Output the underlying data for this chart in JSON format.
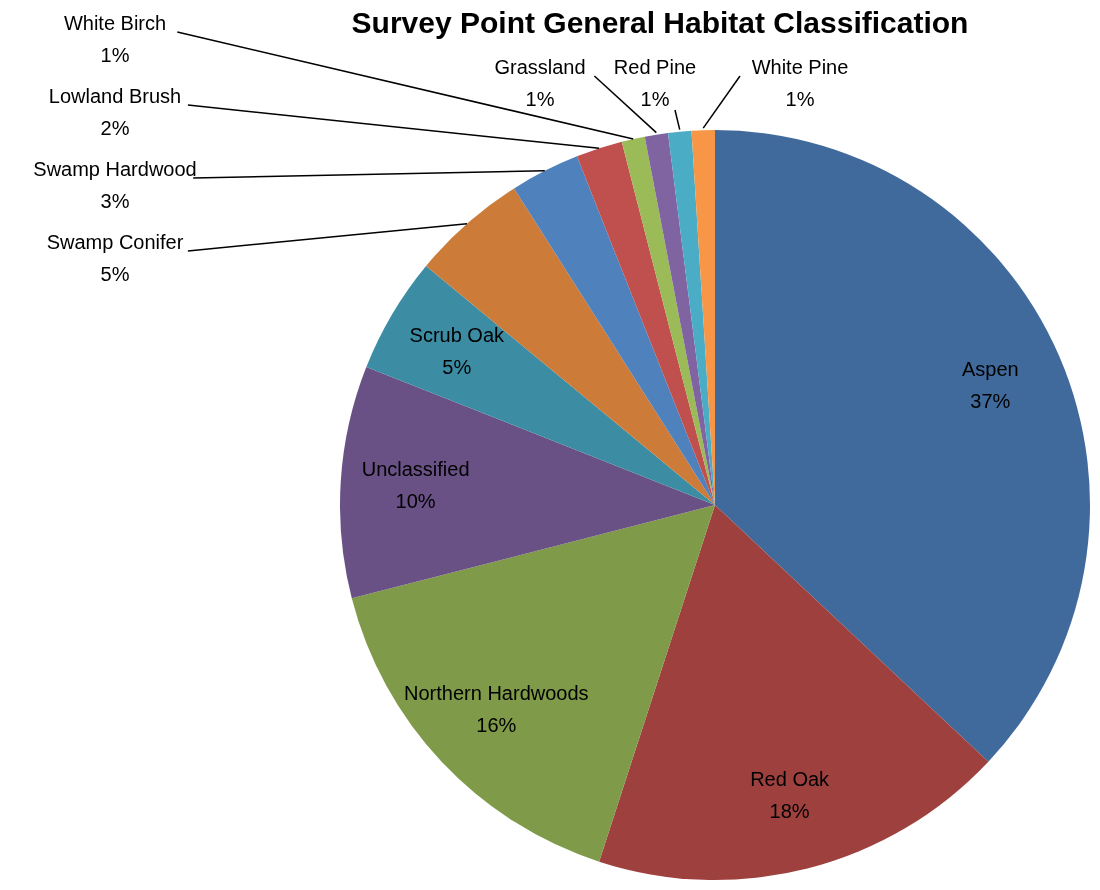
{
  "chart_data": {
    "type": "pie",
    "title": "Survey Point General Habitat Classification",
    "categories": [
      "Aspen",
      "Red Oak",
      "Northern Hardwoods",
      "Unclassified",
      "Scrub Oak",
      "Swamp Conifer",
      "Swamp Hardwood",
      "Lowland Brush",
      "White Birch",
      "Grassland",
      "Red Pine",
      "White Pine"
    ],
    "values": [
      37,
      18,
      16,
      10,
      5,
      5,
      3,
      2,
      1,
      1,
      1,
      1
    ],
    "value_labels": [
      "37%",
      "18%",
      "16%",
      "10%",
      "5%",
      "5%",
      "3%",
      "2%",
      "1%",
      "1%",
      "1%",
      "1%"
    ],
    "colors": [
      "#416a9c",
      "#9e413e",
      "#7f9a48",
      "#695185",
      "#3c8da3",
      "#cc7b38",
      "#4f81bd",
      "#c0504d",
      "#9bbb59",
      "#8064a2",
      "#4bacc6",
      "#f79646"
    ]
  }
}
